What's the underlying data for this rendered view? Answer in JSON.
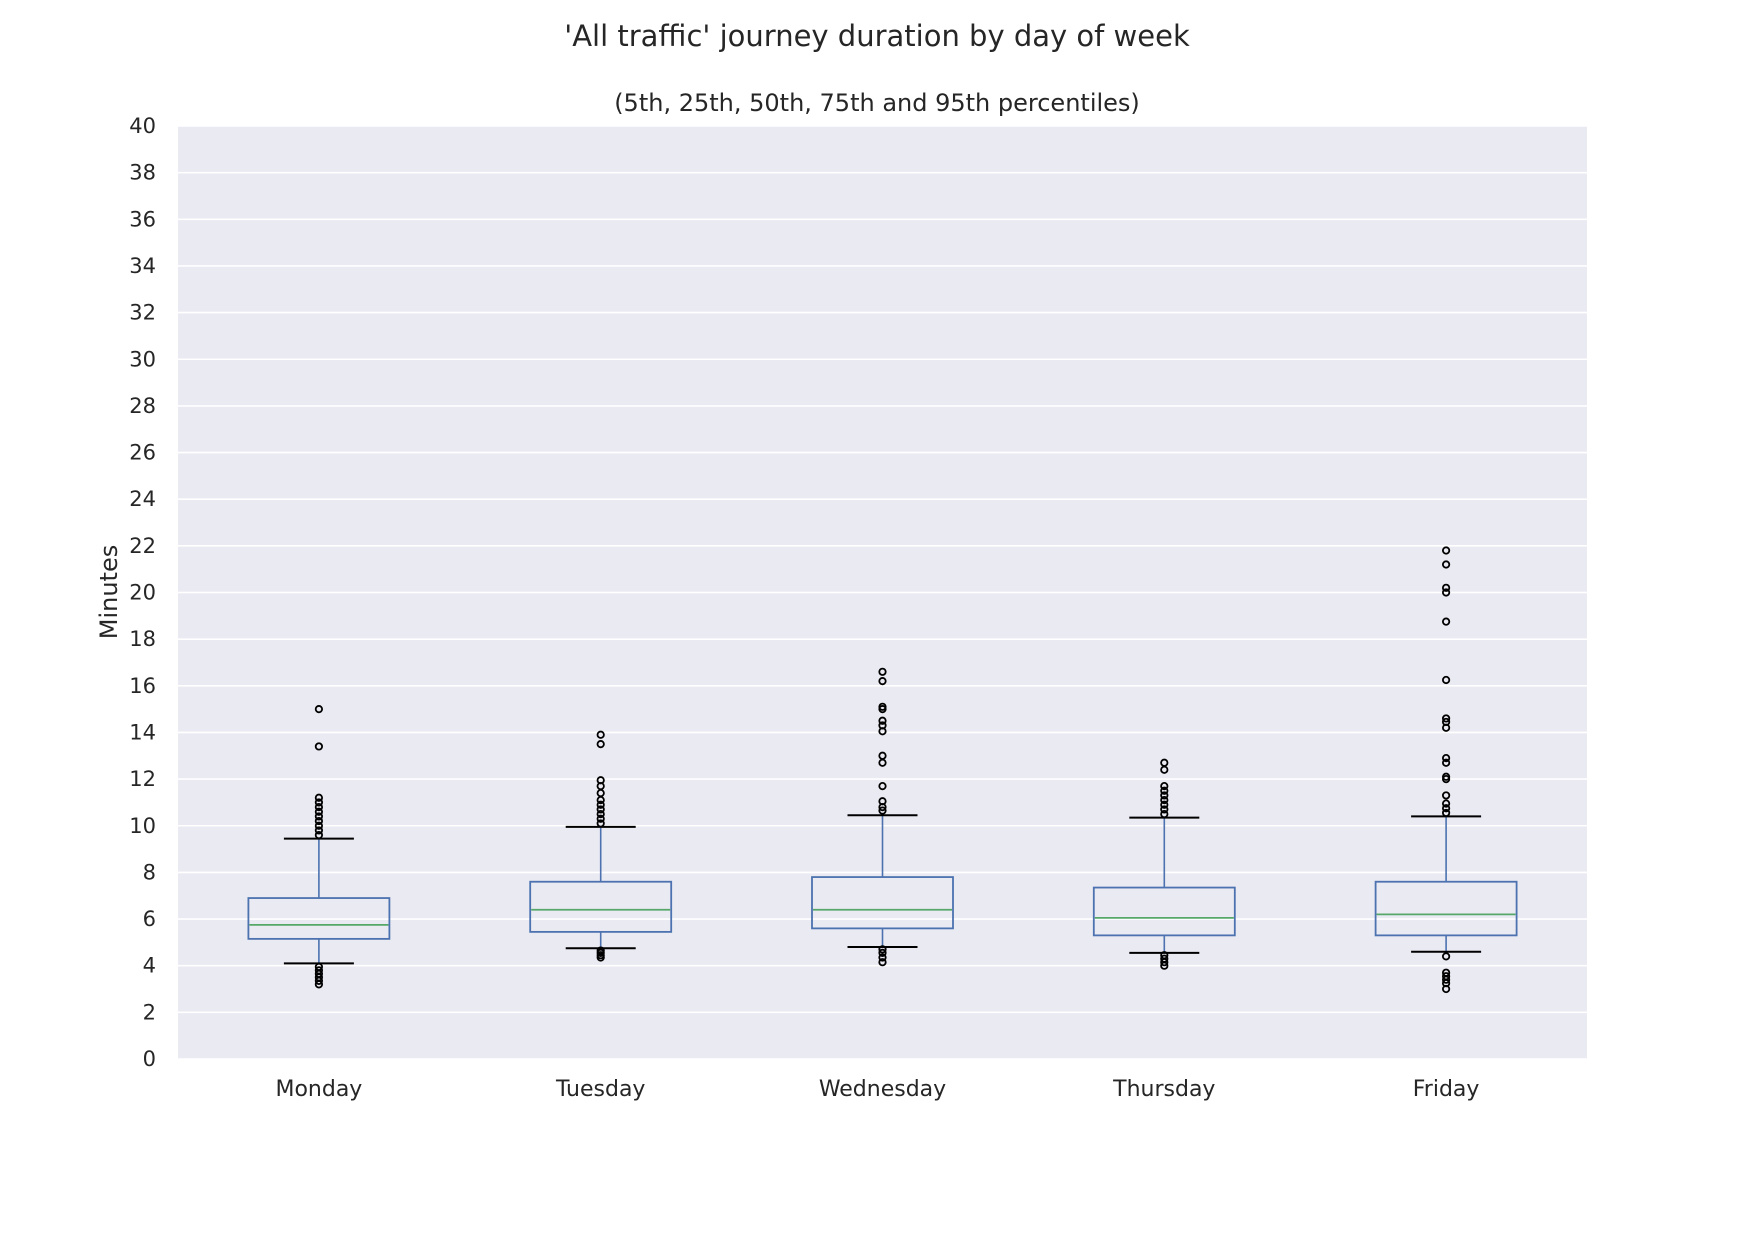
{
  "chart_data": {
    "type": "box",
    "title": "'All traffic' journey duration by day of week",
    "subtitle": "(5th, 25th, 50th, 75th and 95th percentiles)",
    "xlabel": "",
    "ylabel": "Minutes",
    "ylim": [
      0,
      40
    ],
    "yticks": [
      "0",
      "2",
      "4",
      "6",
      "8",
      "10",
      "12",
      "14",
      "16",
      "18",
      "20",
      "22",
      "24",
      "26",
      "28",
      "30",
      "32",
      "34",
      "36",
      "38",
      "40"
    ],
    "categories": [
      "Monday",
      "Tuesday",
      "Wednesday",
      "Thursday",
      "Friday"
    ],
    "grid": true,
    "background_color": "#eaeaf2",
    "box_color": "#4c72b0",
    "median_color": "#55a868",
    "whisker_cap_color": "#000000",
    "boxes": [
      {
        "category": "Monday",
        "p5": 4.1,
        "p25": 5.15,
        "median": 5.75,
        "p75": 6.9,
        "p95": 9.45,
        "outliers": [
          3.2,
          3.35,
          3.5,
          3.65,
          3.8,
          3.95,
          9.6,
          9.8,
          10.0,
          10.2,
          10.4,
          10.6,
          10.8,
          11.0,
          11.2,
          13.4,
          15.0
        ]
      },
      {
        "category": "Tuesday",
        "p5": 4.75,
        "p25": 5.45,
        "median": 6.4,
        "p75": 7.6,
        "p95": 9.95,
        "outliers": [
          4.35,
          4.45,
          4.55,
          4.65,
          10.1,
          10.3,
          10.5,
          10.7,
          10.9,
          11.1,
          11.4,
          11.7,
          11.95,
          13.5,
          13.9
        ]
      },
      {
        "category": "Wednesday",
        "p5": 4.8,
        "p25": 5.6,
        "median": 6.4,
        "p75": 7.8,
        "p95": 10.45,
        "outliers": [
          4.15,
          4.35,
          4.55,
          4.7,
          10.65,
          10.8,
          11.05,
          11.7,
          12.7,
          13.0,
          14.05,
          14.3,
          14.5,
          15.0,
          15.1,
          16.2,
          16.6
        ]
      },
      {
        "category": "Thursday",
        "p5": 4.55,
        "p25": 5.3,
        "median": 6.05,
        "p75": 7.35,
        "p95": 10.35,
        "outliers": [
          4.0,
          4.15,
          4.3,
          4.45,
          10.5,
          10.7,
          10.9,
          11.1,
          11.3,
          11.5,
          11.7,
          12.4,
          12.7
        ]
      },
      {
        "category": "Friday",
        "p5": 4.6,
        "p25": 5.3,
        "median": 6.2,
        "p75": 7.6,
        "p95": 10.4,
        "outliers": [
          3.0,
          3.25,
          3.4,
          3.55,
          3.7,
          4.4,
          10.55,
          10.75,
          10.95,
          11.3,
          12.0,
          12.1,
          12.7,
          12.9,
          14.2,
          14.45,
          14.6,
          16.25,
          18.75,
          20.0,
          20.2,
          21.2,
          21.8
        ]
      }
    ]
  }
}
